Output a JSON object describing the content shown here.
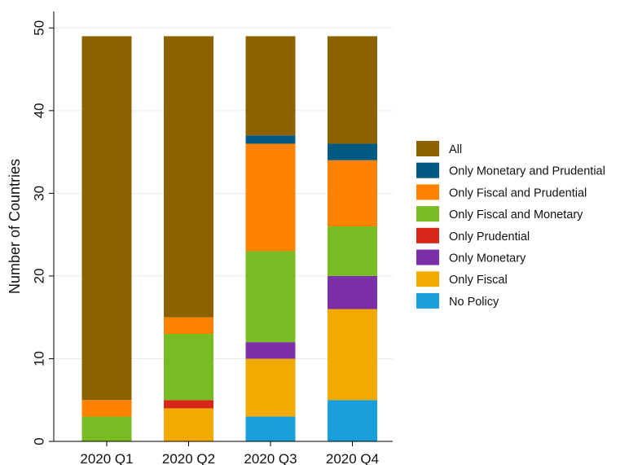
{
  "chart_data": {
    "type": "bar",
    "stacked": true,
    "categories": [
      "2020 Q1",
      "2020 Q2",
      "2020 Q3",
      "2020 Q4"
    ],
    "ylabel": "Number of Countries",
    "xlabel": "",
    "ylim": [
      0,
      52
    ],
    "yticks": [
      0,
      10,
      20,
      30,
      40,
      50
    ],
    "grid": true,
    "legend_position": "right",
    "series": [
      {
        "name": "No Policy",
        "color": "#1a9fdb",
        "values": [
          0,
          0,
          3,
          5
        ]
      },
      {
        "name": "Only Fiscal",
        "color": "#f2a900",
        "values": [
          0,
          4,
          7,
          11
        ]
      },
      {
        "name": "Only Monetary",
        "color": "#7b2fa8",
        "values": [
          0,
          0,
          2,
          4
        ]
      },
      {
        "name": "Only Prudential",
        "color": "#d9261c",
        "values": [
          0,
          1,
          0,
          0
        ]
      },
      {
        "name": "Only Fiscal and Monetary",
        "color": "#78bc23",
        "values": [
          3,
          8,
          11,
          6
        ]
      },
      {
        "name": "Only Fiscal and Prudential",
        "color": "#ff8200",
        "values": [
          2,
          2,
          13,
          8
        ]
      },
      {
        "name": "Only Monetary and Prudential",
        "color": "#005a82",
        "values": [
          0,
          0,
          1,
          2
        ]
      },
      {
        "name": "All",
        "color": "#8c6200",
        "values": [
          44,
          34,
          12,
          13
        ]
      }
    ]
  }
}
